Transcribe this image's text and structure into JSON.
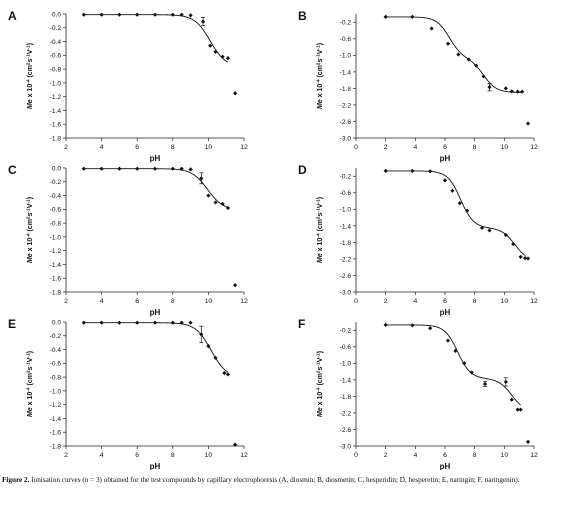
{
  "caption": {
    "label": "Figure 2.",
    "text": "Ionisation curves (n = 3) obtained for the test compounds by capillary electrophoresis (A, diosmin; B, diosmetin; C, hesperidin; D, hesperetin; E, naringin; F, naringenin)."
  },
  "chart_data": [
    {
      "type": "scatter",
      "panel": "A",
      "xlabel": "pH",
      "ylabel_main": "Me x 10",
      "ylabel_exp": "-4",
      "ylabel_units": "(cm",
      "ylabel_tail": "s",
      "xlim": [
        2,
        12
      ],
      "ylim": [
        -1.8,
        0.0
      ],
      "xticks": [
        2,
        4,
        6,
        8,
        10,
        12
      ],
      "yticks": [
        0.0,
        -0.2,
        -0.4,
        -0.6,
        -0.8,
        -1.0,
        -1.2,
        -1.4,
        -1.6,
        -1.8
      ],
      "x": [
        3,
        4,
        5,
        6,
        7,
        8,
        8.5,
        9,
        9.7,
        10.1,
        10.4,
        10.8,
        11.1,
        11.5
      ],
      "y": [
        -0.01,
        -0.01,
        -0.01,
        -0.01,
        -0.01,
        -0.01,
        -0.01,
        -0.02,
        -0.11,
        -0.46,
        -0.55,
        -0.62,
        -0.64,
        -1.15
      ],
      "err": [
        0,
        0,
        0,
        0,
        0,
        0,
        0,
        0,
        0.06,
        0,
        0,
        0,
        0,
        0
      ],
      "fit": {
        "plateau_low": -0.01,
        "steps": [
          {
            "pKa": 10.1,
            "drop": 0.76
          }
        ]
      }
    },
    {
      "type": "scatter",
      "panel": "B",
      "xlabel": "pH",
      "ylabel_main": "Me x 10",
      "ylabel_exp": "-4",
      "ylabel_units": "(cm",
      "ylabel_tail": "s",
      "xlim": [
        0,
        12
      ],
      "ylim": [
        -3.0,
        0.0
      ],
      "xticks": [
        0,
        2,
        4,
        6,
        8,
        10,
        12
      ],
      "yticks": [
        -0.2,
        -0.6,
        -1.0,
        -1.4,
        -1.8,
        -2.2,
        -2.6,
        -3.0
      ],
      "x": [
        2,
        3.8,
        5.1,
        6.2,
        6.9,
        7.6,
        8.1,
        8.6,
        9.0,
        10.1,
        10.5,
        10.9,
        11.2,
        11.6
      ],
      "y": [
        -0.07,
        -0.07,
        -0.35,
        -0.72,
        -0.98,
        -1.1,
        -1.25,
        -1.51,
        -1.77,
        -1.8,
        -1.87,
        -1.88,
        -1.88,
        -2.65
      ],
      "err": [
        0,
        0,
        0,
        0,
        0,
        0,
        0,
        0,
        0.09,
        0,
        0,
        0,
        0,
        0
      ],
      "fit": {
        "plateau_low": -0.07,
        "steps": [
          {
            "pKa": 6.3,
            "drop": 1.0
          },
          {
            "pKa": 8.6,
            "drop": 0.83
          }
        ]
      }
    },
    {
      "type": "scatter",
      "panel": "C",
      "xlabel": "pH",
      "ylabel_main": "Me x 10",
      "ylabel_exp": "-4",
      "ylabel_units": "(cm",
      "ylabel_tail": "s",
      "xlim": [
        2,
        12
      ],
      "ylim": [
        -1.8,
        0.0
      ],
      "xticks": [
        2,
        4,
        6,
        8,
        10,
        12
      ],
      "yticks": [
        0.0,
        -0.2,
        -0.4,
        -0.6,
        -0.8,
        -1.0,
        -1.2,
        -1.4,
        -1.6,
        -1.8
      ],
      "x": [
        3,
        4,
        5,
        6,
        7,
        8,
        8.5,
        9,
        9.6,
        10,
        10.4,
        10.8,
        11.1,
        11.5
      ],
      "y": [
        -0.01,
        -0.01,
        -0.01,
        -0.01,
        -0.01,
        -0.01,
        -0.01,
        -0.02,
        -0.15,
        -0.4,
        -0.5,
        -0.52,
        -0.58,
        -1.7
      ],
      "err": [
        0,
        0,
        0,
        0,
        0,
        0,
        0,
        0,
        0.08,
        0,
        0,
        0,
        0,
        0
      ],
      "fit": {
        "plateau_low": -0.01,
        "steps": [
          {
            "pKa": 9.95,
            "drop": 0.6
          }
        ]
      }
    },
    {
      "type": "scatter",
      "panel": "D",
      "xlabel": "pH",
      "ylabel_main": "Me x 10",
      "ylabel_exp": "-4",
      "ylabel_units": "(cm",
      "ylabel_tail": "s",
      "xlim": [
        0,
        12
      ],
      "ylim": [
        -3.0,
        0.0
      ],
      "xticks": [
        0,
        2,
        4,
        6,
        8,
        10,
        12
      ],
      "yticks": [
        -0.2,
        -0.6,
        -1.0,
        -1.4,
        -1.8,
        -2.2,
        -2.6,
        -3.0
      ],
      "x": [
        2,
        3.8,
        5,
        6,
        6.5,
        7,
        7.5,
        8.5,
        9.0,
        10.1,
        10.6,
        11.1,
        11.4,
        11.6
      ],
      "y": [
        -0.07,
        -0.07,
        -0.08,
        -0.3,
        -0.55,
        -0.85,
        -1.03,
        -1.45,
        -1.51,
        -1.62,
        -1.84,
        -2.15,
        -2.18,
        -2.19
      ],
      "err": [
        0,
        0,
        0,
        0,
        0,
        0,
        0,
        0,
        0,
        0,
        0,
        0,
        0,
        0
      ],
      "fit": {
        "plateau_low": -0.07,
        "steps": [
          {
            "pKa": 7.05,
            "drop": 1.38
          },
          {
            "pKa": 10.7,
            "drop": 0.8
          }
        ]
      }
    },
    {
      "type": "scatter",
      "panel": "E",
      "xlabel": "pH",
      "ylabel_main": "Me x 10",
      "ylabel_exp": "-4",
      "ylabel_units": "(cm",
      "ylabel_tail": "s",
      "xlim": [
        2,
        12
      ],
      "ylim": [
        -1.8,
        0.0
      ],
      "xticks": [
        2,
        4,
        6,
        8,
        10,
        12
      ],
      "yticks": [
        0.0,
        -0.2,
        -0.4,
        -0.6,
        -0.8,
        -1.0,
        -1.2,
        -1.4,
        -1.6,
        -1.8
      ],
      "x": [
        3,
        4,
        5,
        6,
        7,
        8,
        8.5,
        9,
        9.6,
        10,
        10.4,
        10.9,
        11.1,
        11.5
      ],
      "y": [
        -0.01,
        -0.01,
        -0.01,
        -0.01,
        -0.01,
        -0.01,
        -0.01,
        -0.01,
        -0.18,
        -0.35,
        -0.52,
        -0.74,
        -0.76,
        -1.78
      ],
      "err": [
        0,
        0,
        0,
        0,
        0,
        0,
        0,
        0,
        0.12,
        0,
        0,
        0,
        0,
        0
      ],
      "fit": {
        "plateau_low": -0.01,
        "steps": [
          {
            "pKa": 10.15,
            "drop": 0.8
          }
        ]
      }
    },
    {
      "type": "scatter",
      "panel": "F",
      "xlabel": "pH",
      "ylabel_main": "Me x 10",
      "ylabel_exp": "-4",
      "ylabel_units": "(cm",
      "ylabel_tail": "s",
      "xlim": [
        0,
        12
      ],
      "ylim": [
        -3.0,
        0.0
      ],
      "xticks": [
        0,
        2,
        4,
        6,
        8,
        10,
        12
      ],
      "yticks": [
        -0.2,
        -0.6,
        -1.0,
        -1.4,
        -1.8,
        -2.2,
        -2.6,
        -3.0
      ],
      "x": [
        2,
        3.8,
        5.0,
        6.2,
        6.7,
        7.3,
        7.8,
        8.7,
        10.1,
        10.5,
        10.9,
        11.1,
        11.6
      ],
      "y": [
        -0.07,
        -0.08,
        -0.15,
        -0.45,
        -0.7,
        -1.0,
        -1.22,
        -1.5,
        -1.45,
        -1.88,
        -2.12,
        -2.12,
        -2.9
      ],
      "err": [
        0,
        0,
        0,
        0,
        0,
        0,
        0,
        0.06,
        0.1,
        0,
        0,
        0,
        0
      ],
      "fit": {
        "plateau_low": -0.07,
        "steps": [
          {
            "pKa": 6.85,
            "drop": 1.3
          },
          {
            "pKa": 10.5,
            "drop": 0.8
          }
        ]
      }
    }
  ]
}
